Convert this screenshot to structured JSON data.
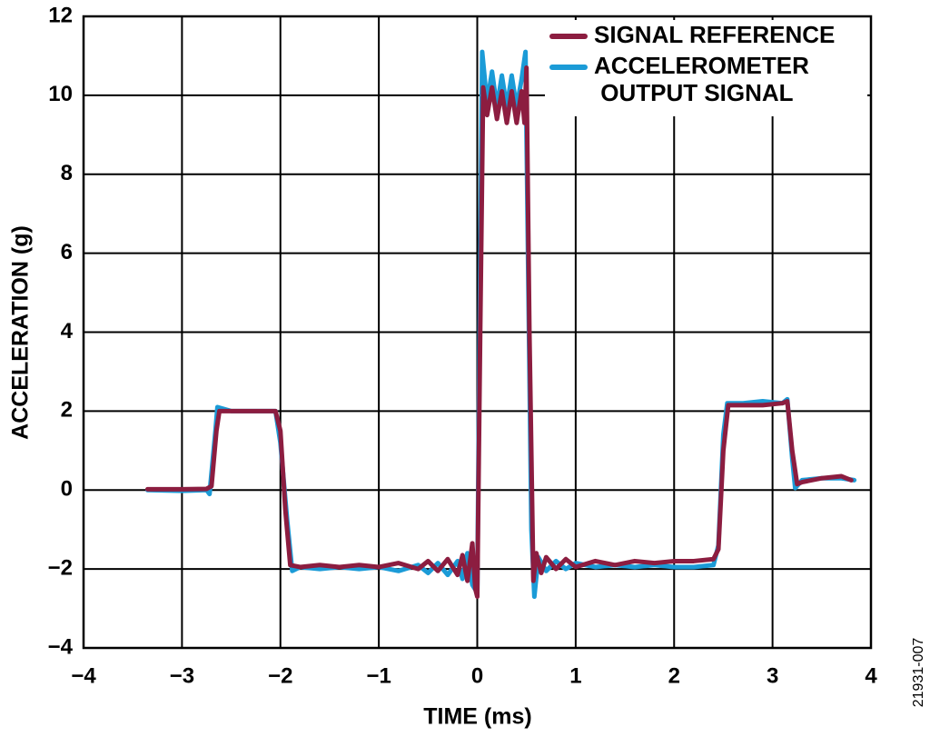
{
  "chart_data": {
    "type": "line",
    "x_label": "TIME (ms)",
    "y_label": "ACCELERATION (g)",
    "annotation": "21931-007",
    "xlim": [
      -4,
      4
    ],
    "ylim": [
      -4,
      12
    ],
    "xticks": [
      {
        "value": -4,
        "label": "−4"
      },
      {
        "value": -3,
        "label": "−3"
      },
      {
        "value": -2,
        "label": "−2"
      },
      {
        "value": -1,
        "label": "−1"
      },
      0,
      1,
      2,
      3,
      4
    ],
    "yticks": [
      {
        "value": -4,
        "label": "−4"
      },
      {
        "value": -2,
        "label": "−2"
      },
      0,
      2,
      4,
      6,
      8,
      10,
      12
    ],
    "grid": true,
    "legend": "upper right",
    "series": [
      {
        "name": "SIGNAL REFERENCE",
        "color": "#8c1d40",
        "x": [
          -3.35,
          -3.0,
          -2.75,
          -2.7,
          -2.65,
          -2.62,
          -2.5,
          -2.3,
          -2.05,
          -2.0,
          -1.95,
          -1.9,
          -1.8,
          -1.6,
          -1.4,
          -1.2,
          -1.0,
          -0.8,
          -0.6,
          -0.5,
          -0.4,
          -0.3,
          -0.2,
          -0.15,
          -0.1,
          -0.05,
          -0.02,
          0.0,
          0.03,
          0.06,
          0.1,
          0.15,
          0.2,
          0.25,
          0.3,
          0.35,
          0.4,
          0.45,
          0.48,
          0.5,
          0.53,
          0.57,
          0.6,
          0.65,
          0.7,
          0.8,
          0.9,
          1.0,
          1.2,
          1.4,
          1.6,
          1.8,
          2.0,
          2.2,
          2.4,
          2.45,
          2.5,
          2.55,
          2.7,
          2.9,
          3.1,
          3.15,
          3.2,
          3.25,
          3.3,
          3.5,
          3.7,
          3.8
        ],
        "values": [
          0.02,
          0.02,
          0.03,
          0.1,
          1.5,
          2.0,
          2.0,
          2.0,
          2.0,
          1.5,
          -0.5,
          -1.9,
          -1.95,
          -1.9,
          -1.95,
          -1.9,
          -1.95,
          -1.85,
          -2.0,
          -1.8,
          -2.05,
          -1.75,
          -2.15,
          -1.65,
          -2.3,
          -1.35,
          -2.5,
          -2.7,
          4.0,
          10.2,
          9.5,
          10.2,
          9.4,
          10.1,
          9.3,
          10.1,
          9.3,
          10.1,
          9.3,
          10.7,
          4.0,
          -2.3,
          -1.6,
          -2.1,
          -1.7,
          -2.0,
          -1.75,
          -1.95,
          -1.8,
          -1.9,
          -1.8,
          -1.85,
          -1.8,
          -1.8,
          -1.75,
          -1.5,
          1.0,
          2.15,
          2.15,
          2.15,
          2.2,
          2.25,
          1.0,
          0.15,
          0.2,
          0.3,
          0.35,
          0.25
        ]
      },
      {
        "name": "ACCELEROMETER OUTPUT SIGNAL",
        "color": "#1b9bd7",
        "x": [
          -3.35,
          -3.0,
          -2.75,
          -2.72,
          -2.66,
          -2.64,
          -2.5,
          -2.3,
          -2.05,
          -2.0,
          -1.93,
          -1.88,
          -1.8,
          -1.6,
          -1.4,
          -1.2,
          -1.0,
          -0.8,
          -0.6,
          -0.5,
          -0.4,
          -0.3,
          -0.2,
          -0.15,
          -0.1,
          -0.05,
          0.0,
          0.02,
          0.05,
          0.1,
          0.15,
          0.2,
          0.25,
          0.3,
          0.35,
          0.4,
          0.45,
          0.49,
          0.52,
          0.55,
          0.58,
          0.62,
          0.7,
          0.8,
          0.9,
          1.0,
          1.2,
          1.4,
          1.6,
          1.8,
          2.0,
          2.2,
          2.4,
          2.45,
          2.5,
          2.54,
          2.7,
          2.9,
          3.1,
          3.15,
          3.2,
          3.23,
          3.3,
          3.5,
          3.7,
          3.83
        ],
        "values": [
          0.0,
          -0.02,
          0.0,
          -0.1,
          1.5,
          2.1,
          2.0,
          2.0,
          2.0,
          1.2,
          -0.8,
          -2.05,
          -1.95,
          -2.0,
          -1.95,
          -2.0,
          -1.95,
          -2.05,
          -1.9,
          -2.1,
          -1.85,
          -2.15,
          -1.8,
          -2.25,
          -1.6,
          -2.4,
          -2.6,
          3.0,
          11.1,
          9.8,
          10.6,
          9.7,
          10.5,
          9.7,
          10.5,
          9.7,
          10.4,
          11.1,
          5.0,
          -1.0,
          -2.7,
          -1.7,
          -2.05,
          -1.8,
          -2.0,
          -1.85,
          -1.95,
          -1.9,
          -1.95,
          -1.9,
          -1.95,
          -1.95,
          -1.9,
          -1.4,
          1.4,
          2.2,
          2.2,
          2.25,
          2.2,
          2.3,
          0.8,
          0.05,
          0.25,
          0.3,
          0.3,
          0.25
        ]
      }
    ]
  }
}
